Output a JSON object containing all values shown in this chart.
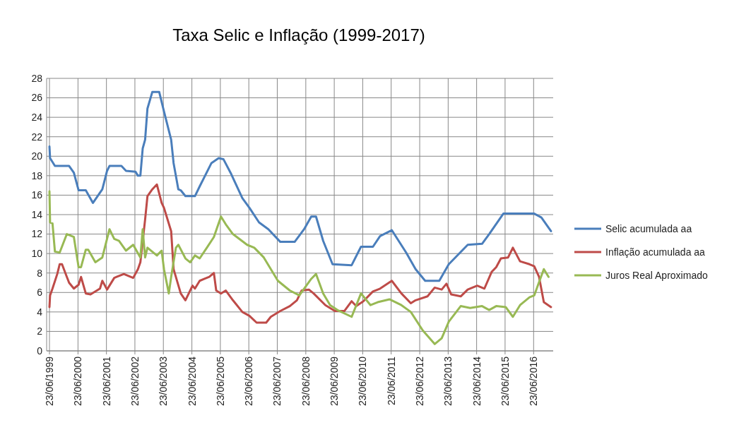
{
  "chart_data": {
    "type": "line",
    "title": "Taxa Selic e Inflação (1999-2017)",
    "xlim": [
      "1999-06-23",
      "2017-03"
    ],
    "xticks": [
      {
        "value": "1999-06-23",
        "label": "23/06/1999"
      },
      {
        "value": "2000-06-23",
        "label": "23/06/2000"
      },
      {
        "value": "2001-06-23",
        "label": "23/06/2001"
      },
      {
        "value": "2002-06-23",
        "label": "23/06/2002"
      },
      {
        "value": "2003-06-23",
        "label": "23/06/2003"
      },
      {
        "value": "2004-06-23",
        "label": "23/06/2004"
      },
      {
        "value": "2005-06-23",
        "label": "23/06/2005"
      },
      {
        "value": "2006-06-23",
        "label": "23/06/2006"
      },
      {
        "value": "2007-06-23",
        "label": "23/06/2007"
      },
      {
        "value": "2008-06-23",
        "label": "23/06/2008"
      },
      {
        "value": "2009-06-23",
        "label": "23/06/2009"
      },
      {
        "value": "2010-06-23",
        "label": "23/06/2010"
      },
      {
        "value": "2011-06-23",
        "label": "23/06/2011"
      },
      {
        "value": "2012-06-23",
        "label": "23/06/2012"
      },
      {
        "value": "2013-06-23",
        "label": "23/06/2013"
      },
      {
        "value": "2014-06-23",
        "label": "23/06/2014"
      },
      {
        "value": "2015-06-23",
        "label": "23/06/2015"
      },
      {
        "value": "2016-06-23",
        "label": "23/06/2016"
      }
    ],
    "ylim": [
      0,
      28
    ],
    "yticks": [
      0,
      2,
      4,
      6,
      8,
      10,
      12,
      14,
      16,
      18,
      20,
      22,
      24,
      26,
      28
    ],
    "grid": true,
    "legend": "right",
    "line_style": "solid",
    "series": [
      {
        "name": "Selic acumulada aa",
        "color": "#4a7ebb",
        "x": [
          "1999-06-23",
          "1999-07",
          "1999-09",
          "2000-03",
          "2000-05",
          "2000-07",
          "2000-10",
          "2001-01",
          "2001-05",
          "2001-07",
          "2001-08",
          "2002-01",
          "2002-03",
          "2002-07",
          "2002-08",
          "2002-09",
          "2002-10",
          "2002-11",
          "2002-12",
          "2003-02",
          "2003-05",
          "2003-07",
          "2003-10",
          "2003-11",
          "2004-01",
          "2004-02",
          "2004-04",
          "2004-08",
          "2004-10",
          "2005-03",
          "2005-06",
          "2005-08",
          "2005-11",
          "2006-04",
          "2006-07",
          "2006-11",
          "2007-03",
          "2007-08",
          "2008-02",
          "2008-06",
          "2008-09",
          "2008-11",
          "2009-02",
          "2009-06",
          "2010-02",
          "2010-06",
          "2010-11",
          "2011-02",
          "2011-07",
          "2012-01",
          "2012-05",
          "2012-09",
          "2013-03",
          "2013-07",
          "2014-03",
          "2014-09",
          "2014-12",
          "2015-06",
          "2016-07",
          "2016-10",
          "2017-02"
        ],
        "values": [
          21.0,
          19.8,
          19.0,
          19.0,
          18.3,
          16.5,
          16.5,
          15.2,
          16.6,
          18.5,
          19.0,
          19.0,
          18.5,
          18.4,
          18.0,
          18.0,
          20.8,
          21.7,
          24.9,
          26.6,
          26.6,
          24.6,
          21.7,
          19.3,
          16.6,
          16.5,
          15.9,
          15.9,
          16.9,
          19.3,
          19.8,
          19.7,
          18.3,
          15.7,
          14.7,
          13.2,
          12.5,
          11.2,
          11.2,
          12.5,
          13.8,
          13.8,
          11.3,
          8.9,
          8.8,
          10.7,
          10.7,
          11.8,
          12.4,
          10.1,
          8.4,
          7.2,
          7.2,
          8.9,
          10.9,
          11.0,
          12.0,
          14.1,
          14.1,
          13.7,
          12.3
        ]
      },
      {
        "name": "Inflação acumulada aa",
        "color": "#be4b48",
        "x": [
          "1999-06-23",
          "1999-07",
          "1999-08",
          "1999-10",
          "1999-11",
          "1999-12",
          "2000-02",
          "2000-03",
          "2000-05",
          "2000-07",
          "2000-08",
          "2000-10",
          "2000-12",
          "2001-04",
          "2001-05",
          "2001-07",
          "2001-10",
          "2001-11",
          "2002-02",
          "2002-06",
          "2002-08",
          "2002-09",
          "2002-11",
          "2002-12",
          "2003-02",
          "2003-04",
          "2003-06",
          "2003-07",
          "2003-10",
          "2003-11",
          "2004-02",
          "2004-04",
          "2004-07",
          "2004-08",
          "2004-10",
          "2004-12",
          "2005-02",
          "2005-04",
          "2005-05",
          "2005-07",
          "2005-09",
          "2005-12",
          "2006-04",
          "2006-07",
          "2006-10",
          "2007-02",
          "2007-04",
          "2007-08",
          "2007-12",
          "2008-03",
          "2008-05",
          "2008-08",
          "2008-10",
          "2009-03",
          "2009-07",
          "2009-11",
          "2010-02",
          "2010-04",
          "2010-07",
          "2010-11",
          "2011-02",
          "2011-07",
          "2011-11",
          "2012-03",
          "2012-05",
          "2012-10",
          "2013-01",
          "2013-04",
          "2013-06",
          "2013-08",
          "2013-12",
          "2014-03",
          "2014-07",
          "2014-10",
          "2015-01",
          "2015-03",
          "2015-05",
          "2015-08",
          "2015-10",
          "2016-01",
          "2016-05",
          "2016-07",
          "2016-09",
          "2016-11",
          "2017-02"
        ],
        "values": [
          4.5,
          5.7,
          6.4,
          7.9,
          8.9,
          8.9,
          7.6,
          7.0,
          6.4,
          6.8,
          7.6,
          5.9,
          5.8,
          6.4,
          7.2,
          6.3,
          7.5,
          7.6,
          7.9,
          7.5,
          8.4,
          9.1,
          13.5,
          15.9,
          16.6,
          17.1,
          15.2,
          14.7,
          12.3,
          8.4,
          5.9,
          5.2,
          6.7,
          6.4,
          7.2,
          7.4,
          7.6,
          8.0,
          6.2,
          5.9,
          6.2,
          5.2,
          4.0,
          3.6,
          2.9,
          2.9,
          3.5,
          4.1,
          4.6,
          5.2,
          6.2,
          6.3,
          5.9,
          4.7,
          4.1,
          4.1,
          5.1,
          4.6,
          5.1,
          6.1,
          6.4,
          7.2,
          5.9,
          4.9,
          5.2,
          5.6,
          6.5,
          6.3,
          6.9,
          5.8,
          5.6,
          6.3,
          6.7,
          6.4,
          8.1,
          8.6,
          9.5,
          9.6,
          10.6,
          9.2,
          8.9,
          8.7,
          7.6,
          5.0,
          4.5
        ]
      },
      {
        "name": "Juros Real Aproximado",
        "color": "#98b954",
        "x": [
          "1999-06-23",
          "1999-07",
          "1999-08",
          "1999-09",
          "1999-11",
          "2000-02",
          "2000-03",
          "2000-05",
          "2000-07",
          "2000-08",
          "2000-10",
          "2000-11",
          "2001-02",
          "2001-05",
          "2001-08",
          "2001-10",
          "2001-12",
          "2002-03",
          "2002-06",
          "2002-09",
          "2002-10",
          "2002-11",
          "2002-12",
          "2003-04",
          "2003-06",
          "2003-07",
          "2003-09",
          "2003-10",
          "2003-12",
          "2004-01",
          "2004-04",
          "2004-06",
          "2004-08",
          "2004-10",
          "2005-01",
          "2005-04",
          "2005-07",
          "2005-09",
          "2005-12",
          "2006-06",
          "2006-09",
          "2007-01",
          "2007-07",
          "2007-12",
          "2008-04",
          "2008-09",
          "2008-11",
          "2009-02",
          "2009-05",
          "2009-08",
          "2010-02",
          "2010-06",
          "2010-10",
          "2011-01",
          "2011-06",
          "2011-11",
          "2012-03",
          "2012-08",
          "2013-01",
          "2013-04",
          "2013-07",
          "2013-12",
          "2014-04",
          "2014-09",
          "2014-12",
          "2015-03",
          "2015-07",
          "2015-10",
          "2016-01",
          "2016-05",
          "2016-07",
          "2016-11",
          "2017-01"
        ],
        "values": [
          16.4,
          13.2,
          13.1,
          10.2,
          10.1,
          12.0,
          11.9,
          11.7,
          8.6,
          8.6,
          10.4,
          10.4,
          9.1,
          9.6,
          12.5,
          11.5,
          11.3,
          10.3,
          10.9,
          9.6,
          12.5,
          9.6,
          10.6,
          9.8,
          10.3,
          8.4,
          5.9,
          7.6,
          10.6,
          10.9,
          9.5,
          9.1,
          9.8,
          9.5,
          10.6,
          11.7,
          13.8,
          13.0,
          12.0,
          10.9,
          10.6,
          9.6,
          7.2,
          6.2,
          5.7,
          7.4,
          7.9,
          5.9,
          4.7,
          4.2,
          3.5,
          5.9,
          4.7,
          5.0,
          5.3,
          4.7,
          4.0,
          2.1,
          0.7,
          1.3,
          3.0,
          4.6,
          4.4,
          4.6,
          4.2,
          4.6,
          4.5,
          3.5,
          4.7,
          5.5,
          5.7,
          8.4,
          7.6
        ]
      }
    ]
  }
}
